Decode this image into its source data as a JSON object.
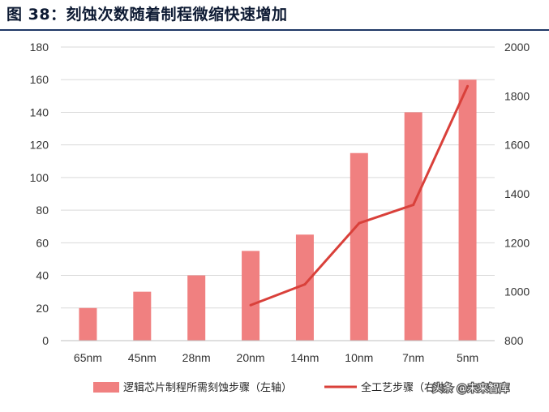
{
  "header": {
    "title": "图 38：刻蚀次数随着制程微缩快速增加"
  },
  "watermark": {
    "text": "头条 @未来智库"
  },
  "chart_data": {
    "type": "bar",
    "categories": [
      "65nm",
      "45nm",
      "28nm",
      "20nm",
      "14nm",
      "10nm",
      "7nm",
      "5nm"
    ],
    "series": [
      {
        "name": "逻辑芯片制程所需刻蚀步骤（左轴）",
        "type": "bar",
        "axis": "left",
        "color": "#f08080",
        "values": [
          20,
          30,
          40,
          55,
          65,
          115,
          140,
          160
        ]
      },
      {
        "name": "全工艺步骤（右轴）",
        "type": "line",
        "axis": "right",
        "color": "#d9403a",
        "values": [
          null,
          null,
          null,
          945,
          1030,
          1280,
          1355,
          1840
        ]
      }
    ],
    "y_left": {
      "min": 0,
      "max": 180,
      "ticks": [
        0,
        20,
        40,
        60,
        80,
        100,
        120,
        140,
        160,
        180
      ]
    },
    "y_right": {
      "min": 800,
      "max": 2000,
      "ticks": [
        800,
        1000,
        1200,
        1400,
        1600,
        1800,
        2000
      ]
    },
    "grid": true,
    "legend_position": "bottom",
    "title": "图 38：刻蚀次数随着制程微缩快速增加",
    "xlabel": "",
    "ylabel": ""
  }
}
